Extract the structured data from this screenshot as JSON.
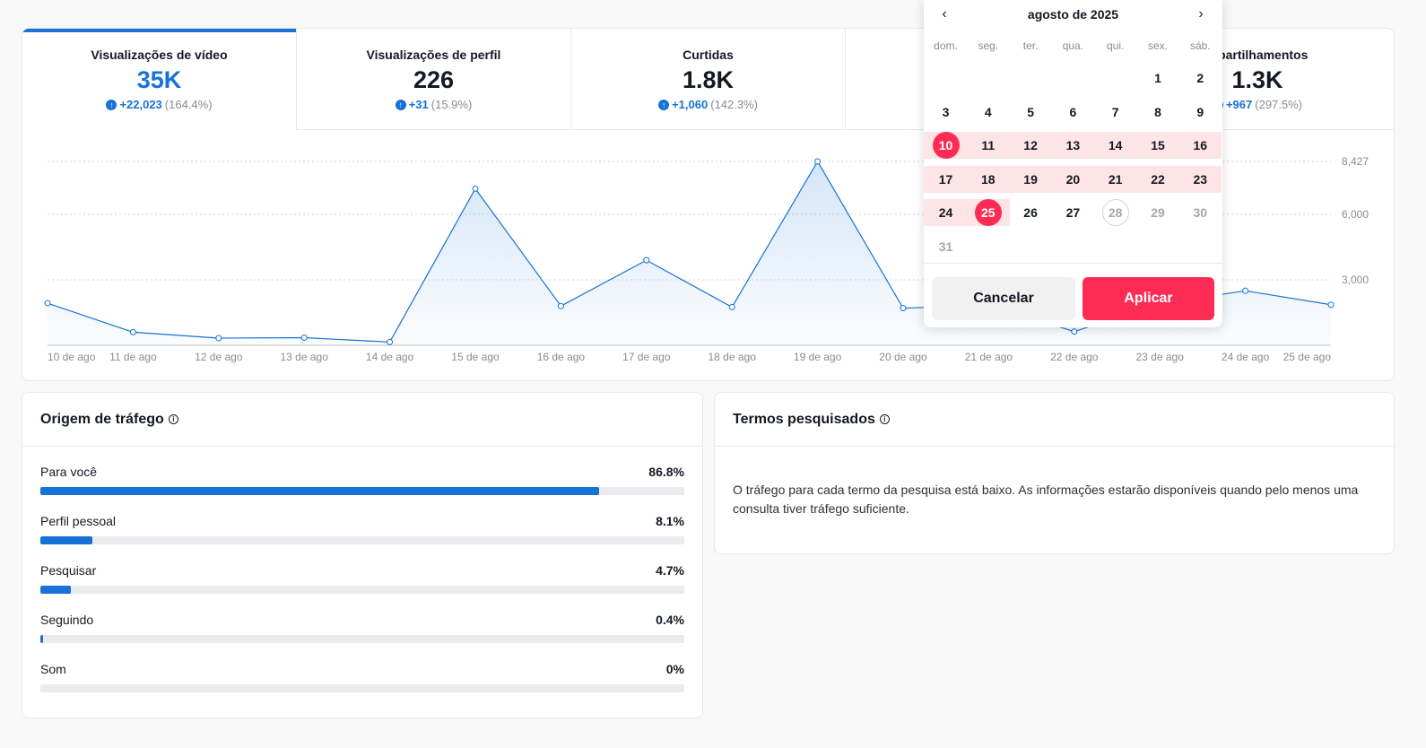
{
  "metrics": [
    {
      "label": "Visualizações de vídeo",
      "value": "35K",
      "change_abs": "+22,023",
      "change_pct": "(164.4%)",
      "active": true
    },
    {
      "label": "Visualizações de perfil",
      "value": "226",
      "change_abs": "+31",
      "change_pct": "(15.9%)",
      "active": false
    },
    {
      "label": "Curtidas",
      "value": "1.8K",
      "change_abs": "+1,060",
      "change_pct": "(142.3%)",
      "active": false
    },
    {
      "label": "",
      "value": "",
      "change_abs": "",
      "change_pct": "",
      "active": false
    },
    {
      "label": "mpartilhamentos",
      "value": "1.3K",
      "change_abs": "+967",
      "change_pct": "(297.5%)",
      "active": false
    }
  ],
  "chart_data": {
    "type": "area",
    "x": [
      "10 de ago",
      "11 de ago",
      "12 de ago",
      "13 de ago",
      "14 de ago",
      "15 de ago",
      "16 de ago",
      "17 de ago",
      "18 de ago",
      "19 de ago",
      "20 de ago",
      "21 de ago",
      "22 de ago",
      "23 de ago",
      "24 de ago",
      "25 de ago"
    ],
    "series": [
      {
        "values": [
          1930,
          600,
          330,
          350,
          150,
          7180,
          1800,
          3900,
          1750,
          8427,
          1700,
          1850,
          630,
          1900,
          2500,
          1860
        ]
      }
    ],
    "yticks": [
      3000,
      6000,
      8427
    ],
    "ytick_labels": [
      "3,000",
      "6,000",
      "8,427"
    ],
    "ylim": [
      0,
      8427
    ],
    "grid": true,
    "color": "#1672d6"
  },
  "traffic": {
    "title": "Origem de tráfego",
    "items": [
      {
        "name": "Para você",
        "pct_label": "86.8%",
        "pct": 86.8
      },
      {
        "name": "Perfil pessoal",
        "pct_label": "8.1%",
        "pct": 8.1
      },
      {
        "name": "Pesquisar",
        "pct_label": "4.7%",
        "pct": 4.7
      },
      {
        "name": "Seguindo",
        "pct_label": "0.4%",
        "pct": 0.4
      },
      {
        "name": "Som",
        "pct_label": "0%",
        "pct": 0
      }
    ]
  },
  "search_terms": {
    "title": "Termos pesquisados",
    "message": "O tráfego para cada termo da pesquisa está baixo. As informações estarão disponíveis quando pelo menos uma consulta tiver tráfego suficiente."
  },
  "calendar": {
    "month_label": "agosto de 2025",
    "weekdays": [
      "dom.",
      "seg.",
      "ter.",
      "qua.",
      "qui.",
      "sex.",
      "sáb."
    ],
    "first_weekday": 5,
    "days_in_month": 31,
    "range_start": 10,
    "range_end": 25,
    "today": 28,
    "cancel_label": "Cancelar",
    "apply_label": "Aplicar",
    "accent": "#fe2c55"
  }
}
